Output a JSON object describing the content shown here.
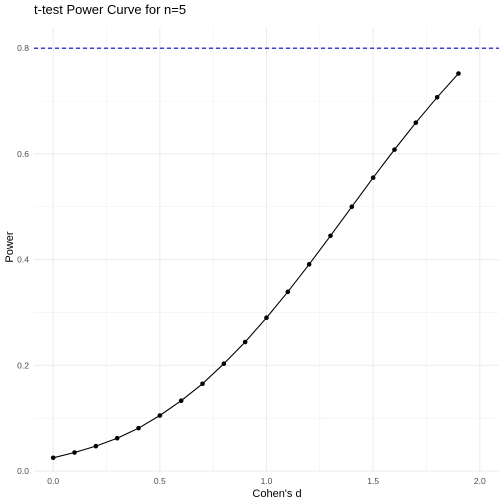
{
  "chart_data": {
    "type": "line",
    "title": "t-test Power Curve for n=5",
    "xlabel": "Cohen's d",
    "ylabel": "Power",
    "xlim": [
      -0.09,
      2.09
    ],
    "ylim": [
      0.0,
      0.84
    ],
    "xticks": [
      0.0,
      0.5,
      1.0,
      1.5,
      2.0
    ],
    "xtick_labels": [
      "0.0",
      "0.5",
      "1.0",
      "1.5",
      "2.0"
    ],
    "yticks": [
      0.0,
      0.2,
      0.4,
      0.6,
      0.8
    ],
    "ytick_labels": [
      "0.0",
      "0.2",
      "0.4",
      "0.6",
      "0.8"
    ],
    "grid": true,
    "series": [
      {
        "line_color": "#000000",
        "points": [
          {
            "x": 0.0,
            "y": 0.025
          },
          {
            "x": 0.1,
            "y": 0.035
          },
          {
            "x": 0.2,
            "y": 0.047
          },
          {
            "x": 0.3,
            "y": 0.062
          },
          {
            "x": 0.4,
            "y": 0.081
          },
          {
            "x": 0.5,
            "y": 0.105
          },
          {
            "x": 0.6,
            "y": 0.133
          },
          {
            "x": 0.7,
            "y": 0.165
          },
          {
            "x": 0.8,
            "y": 0.203
          },
          {
            "x": 0.9,
            "y": 0.244
          },
          {
            "x": 1.0,
            "y": 0.29
          },
          {
            "x": 1.1,
            "y": 0.339
          },
          {
            "x": 1.2,
            "y": 0.391
          },
          {
            "x": 1.3,
            "y": 0.445
          },
          {
            "x": 1.4,
            "y": 0.5
          },
          {
            "x": 1.5,
            "y": 0.555
          },
          {
            "x": 1.6,
            "y": 0.608
          },
          {
            "x": 1.7,
            "y": 0.659
          },
          {
            "x": 1.8,
            "y": 0.707
          },
          {
            "x": 1.9,
            "y": 0.752
          }
        ]
      }
    ],
    "reference_line": {
      "y": 0.8,
      "style": "dashed",
      "color": "#0000cc"
    }
  }
}
